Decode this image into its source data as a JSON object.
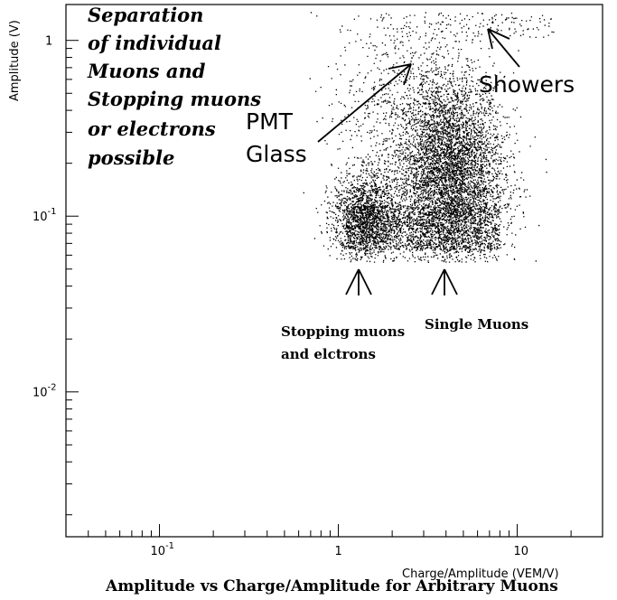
{
  "chart_data": {
    "type": "scatter",
    "title": "Amplitude vs Charge/Amplitude for Arbitrary Muons",
    "xlabel": "Charge/Amplitude (VEM/V)",
    "ylabel": "Amplitude (V)",
    "x_scale": "log",
    "y_scale": "log",
    "xlim": [
      0.03,
      30
    ],
    "ylim": [
      0.0015,
      1.6
    ],
    "grid": false,
    "x_ticks": [
      {
        "value": 0.1,
        "base": "10",
        "exp": "-1"
      },
      {
        "value": 1,
        "base": "1",
        "exp": ""
      },
      {
        "value": 10,
        "base": "10",
        "exp": ""
      }
    ],
    "y_ticks": [
      {
        "value": 1,
        "base": "1",
        "exp": ""
      },
      {
        "value": 0.1,
        "base": "10",
        "exp": "-1"
      },
      {
        "value": 0.01,
        "base": "10",
        "exp": "-2"
      }
    ],
    "clusters": [
      {
        "label": "Single Muons",
        "x_center": 4.2,
        "y_center": 0.17,
        "x_spread": 0.15,
        "y_spread": 0.28
      },
      {
        "label": "Stopping muons and elctrons",
        "x_center": 1.4,
        "y_center": 0.1,
        "x_spread": 0.09,
        "y_spread": 0.13
      },
      {
        "label": "PMT Glass",
        "x_center": 2.3,
        "y_center": 0.4,
        "x_spread": 0.2,
        "y_spread": 0.35
      },
      {
        "label": "Showers",
        "x_center": 7.0,
        "y_center": 1.25,
        "x_spread": 0.25,
        "y_spread": 0.05
      }
    ],
    "annotations": {
      "main_note": [
        "Separation",
        "of individual",
        "Muons and",
        "Stopping muons",
        "or electrons",
        "possible"
      ],
      "pmt_glass": [
        "PMT",
        "Glass"
      ],
      "showers": "Showers",
      "stopping": [
        "Stopping muons",
        "and elctrons"
      ],
      "single": "Single Muons"
    },
    "marker_color": "#000000"
  }
}
